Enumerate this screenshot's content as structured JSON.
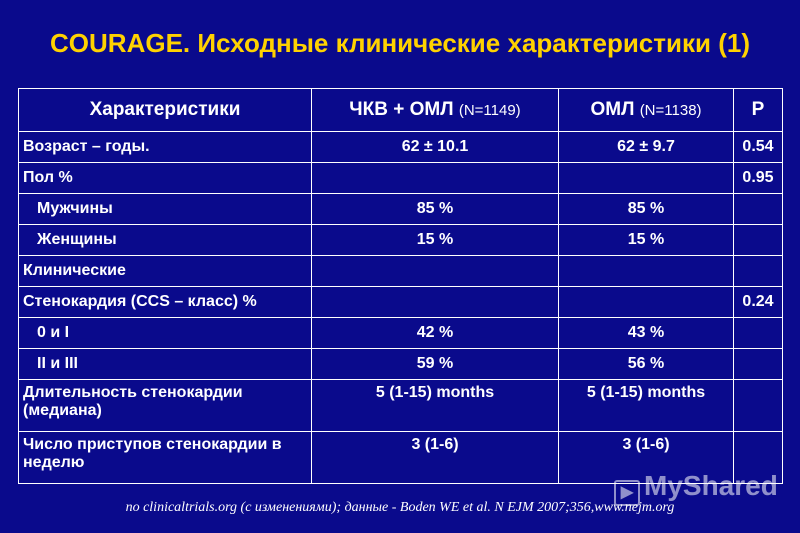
{
  "title": "COURAGE. Исходные клинические характеристики (1)",
  "table": {
    "headers": {
      "col1": "Характеристики",
      "col2_main": "ЧКВ + ОМЛ",
      "col2_n": "(N=1149)",
      "col3_main": "ОМЛ",
      "col3_n": "(N=1138)",
      "col4": "P"
    },
    "rows": [
      {
        "label": "Возраст – годы.",
        "pci": "62 ± 10.1",
        "omt": "62 ± 9.7",
        "p": "0.54"
      },
      {
        "label": "Пол %",
        "pci": "",
        "omt": "",
        "p": "0.95"
      },
      {
        "label": "Мужчины",
        "pci": "85 %",
        "omt": "85 %",
        "p": ""
      },
      {
        "label": "Женщины",
        "pci": "15 %",
        "omt": "15 %",
        "p": ""
      },
      {
        "label": "Клинические",
        "pci": "",
        "omt": "",
        "p": ""
      },
      {
        "label": "Стенокардия (CCS – класс) %",
        "pci": "",
        "omt": "",
        "p": "0.24"
      },
      {
        "label": "0 и I",
        "pci": "42 %",
        "omt": "43 %",
        "p": ""
      },
      {
        "label": "II и III",
        "pci": "59 %",
        "omt": "56 %",
        "p": ""
      },
      {
        "label": "Длительность стенокардии (медиана)",
        "pci": "5 (1-15) months",
        "omt": "5 (1-15) months",
        "p": ""
      },
      {
        "label": "Число приступов стенокардии в неделю",
        "pci": "3 (1-6)",
        "omt": "3 (1-6)",
        "p": ""
      }
    ]
  },
  "source": "по clinicaltrials.org (с изменениями); данные - Boden WE et al. N EJM 2007;356,www.nejm.org",
  "watermark": "MyShared"
}
